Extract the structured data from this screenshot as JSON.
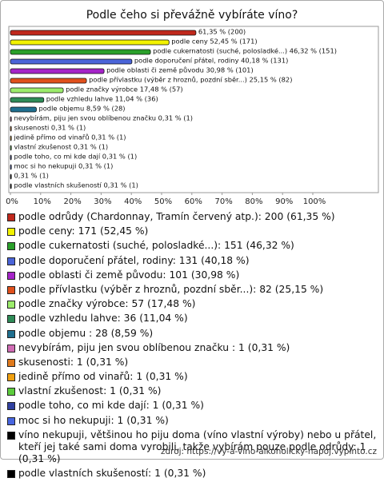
{
  "chart_data": {
    "type": "bar",
    "orientation": "horizontal",
    "title": "Podle čeho si převážně vybíráte víno?",
    "categories": [
      "podle odrůdy (Chardonnay, Tramín červený atp.): 200 (61,35 %)",
      "podle ceny: 171 (52,45 %)",
      "podle cukernatosti (suché, polosladké...): 151 (46,32 %)",
      "podle doporučení přátel, rodiny: 131 (40,18 %)",
      "podle oblasti či země původu: 101 (30,98 %)",
      "podle přívlastku (výběr z hroznů, pozdní sběr...): 82 (25,15 %)",
      "podle značky výrobce: 57 (17,48 %)",
      "podle vzhledu lahve: 36 (11,04 %)",
      "podle objemu : 28 (8,59 %)",
      "nevybírám, piju jen svou oblíbenou značku : 1 (0,31 %)",
      "skusenosti: 1 (0,31 %)",
      "jedině přímo od vinařů: 1 (0,31 %)",
      "vlastní zkušenost: 1 (0,31 %)",
      "podle toho, co mi kde dají: 1 (0,31 %)",
      "moc si ho nekupuji: 1 (0,31 %)",
      "víno nekupuji, většinou ho piju doma (víno vlastní výroby) nebo u přátel, kteří jej také sami doma vyrobili, takže vybírám pouze podle odrůdy: 1 (0,31 %)",
      "podle vlastních skušeností: 1 (0,31 %)"
    ],
    "values": [
      61.35,
      52.45,
      46.32,
      40.18,
      30.98,
      25.15,
      17.48,
      11.04,
      8.59,
      0.31,
      0.31,
      0.31,
      0.31,
      0.31,
      0.31,
      0.31,
      0.31
    ],
    "value_labels": [
      "61,35 % (200)",
      "podle ceny 52,45 % (171)",
      "podle cukernatosti (suché, polosladké...) 46,32 % (151)",
      "podle doporučení přátel, rodiny 40,18 % (131)",
      "podle oblasti či země původu 30,98 % (101)",
      "podle přívlastku (výběr z hroznů, pozdní sběr...) 25,15 % (82)",
      "podle značky výrobce 17,48 % (57)",
      "podle vzhledu lahve 11,04 % (36)",
      "podle objemu  8,59 % (28)",
      "nevybírám, piju jen svou oblíbenou značku  0,31 % (1)",
      "skusenosti 0,31 % (1)",
      "jedině přímo od vinařů 0,31 % (1)",
      "vlastní zkušenost 0,31 % (1)",
      "podle toho, co mi kde dají  0,31 % (1)",
      "moc si ho nekupuji  0,31 % (1)",
      "0,31 % (1)",
      "podle vlastních skušeností 0,31 % (1)"
    ],
    "colors": [
      "#c0281c",
      "#f2f200",
      "#2aa02a",
      "#4a64d8",
      "#a524c8",
      "#e0501c",
      "#9cec6c",
      "#2e8b57",
      "#1f6f8f",
      "#d06cb4",
      "#e07a1c",
      "#f0a010",
      "#5ccc3c",
      "#3040a0",
      "#4866e0",
      "#000000",
      "#000000"
    ],
    "xlim": [
      0,
      120
    ],
    "xticks": [
      {
        "value": 0,
        "label": "0%"
      },
      {
        "value": 10,
        "label": "10%"
      },
      {
        "value": 20,
        "label": "20%"
      },
      {
        "value": 30,
        "label": "30%"
      },
      {
        "value": 40,
        "label": "40%"
      },
      {
        "value": 50,
        "label": "50%"
      },
      {
        "value": 60,
        "label": "60%"
      },
      {
        "value": 70,
        "label": "70%"
      },
      {
        "value": 80,
        "label": "80%"
      },
      {
        "value": 90,
        "label": "90%"
      },
      {
        "value": 100,
        "label": "100%"
      }
    ],
    "source": "zdroj: https://vy-a-vino-alkoholicky-napoj.vyplnto.cz"
  }
}
